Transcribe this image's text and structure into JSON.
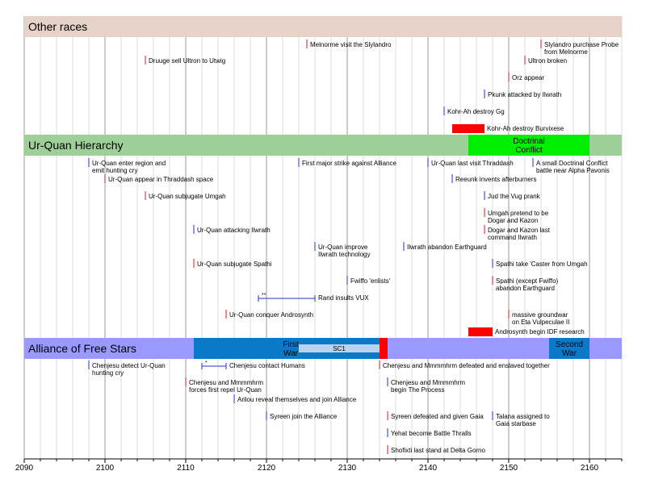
{
  "chart_data": {
    "type": "timeline",
    "x_range": [
      2090,
      2164
    ],
    "x_ticks": [
      2090,
      2100,
      2110,
      2120,
      2130,
      2140,
      2150,
      2160
    ],
    "minor_grid_step": 2,
    "grid": true,
    "colors": {
      "grid_major": "#9a9a9a",
      "grid_minor": "#dcdcdc",
      "red": "#e0141c",
      "blue": "#2233cc",
      "other_header": "#e6d2c8",
      "urquan_header": "#9ecf98",
      "alliance_header": "#9999ff",
      "doctrinal": "#00ee00",
      "war": "#0a7ac8",
      "sc1": "#b4d4f0",
      "red_bar": "#ff0000"
    },
    "sections": [
      {
        "name": "Other races",
        "header_color": "other_header",
        "spans": [],
        "events": [
          {
            "year": 2125,
            "color": "red",
            "text": [
              "Melnorme visit the Slylandro"
            ]
          },
          {
            "year": 2154,
            "color": "red",
            "text": [
              "Slylandro purchase Probe",
              "from Melnorme"
            ]
          },
          {
            "year": 2105,
            "color": "red",
            "text": [
              "Druuge sell Ultron to Utwig"
            ]
          },
          {
            "year": 2152,
            "color": "red",
            "text": [
              "Ultron broken"
            ]
          },
          {
            "year": 2150,
            "color": "red",
            "text": [
              "Orz appear"
            ]
          },
          {
            "year": 2147,
            "color": "blue",
            "text": [
              "Pkunk attacked by Ilwrath"
            ]
          },
          {
            "year": 2142,
            "color": "blue",
            "text": [
              "Kohr-Ah destroy Gg"
            ]
          },
          {
            "bar": [
              2143,
              2147
            ],
            "text": [
              "Kohr-Ah destroy Burvixese"
            ]
          }
        ]
      },
      {
        "name": "Ur-Quan Hierarchy",
        "header_color": "urquan_header",
        "spans": [
          {
            "range": [
              2145,
              2160
            ],
            "color": "doctrinal",
            "label": [
              "Doctrinal",
              "Conflict"
            ]
          }
        ],
        "events": [
          {
            "year": 2098,
            "color": "blue",
            "text": [
              "Ur-Quan enter region and",
              "emit hunting cry"
            ]
          },
          {
            "year": 2124,
            "color": "blue",
            "text": [
              "First major strike against Alliance"
            ]
          },
          {
            "year": 2140,
            "color": "blue",
            "text": [
              "Ur-Quan last visit Thraddash"
            ]
          },
          {
            "year": 2153,
            "color": "blue",
            "text": [
              "A small Doctrinal Conflict",
              "battle near Alpha Pavonis"
            ]
          },
          {
            "year": 2100,
            "color": "red",
            "text": [
              "Ur-Quan appear in Thraddash space"
            ]
          },
          {
            "year": 2143,
            "color": "blue",
            "text": [
              "Reeunk invents afterburners"
            ]
          },
          {
            "year": 2105,
            "color": "red",
            "text": [
              "Ur-Quan subjugate Umgah"
            ]
          },
          {
            "year": 2147,
            "color": "blue",
            "text": [
              "Jud the Vug prank"
            ]
          },
          {
            "year": 2147,
            "color": "red",
            "text": [
              "Umgah pretend to be",
              "Dogar and Kazon"
            ]
          },
          {
            "year": 2111,
            "color": "blue",
            "text": [
              "Ur-Quan attacking Ilwrath"
            ]
          },
          {
            "year": 2147,
            "color": "red",
            "text": [
              "Dogar and Kazon last",
              "command Ilwrath"
            ]
          },
          {
            "year": 2126,
            "color": "blue",
            "text": [
              "Ur-Quan improve",
              "Ilwrath technology"
            ]
          },
          {
            "year": 2137,
            "color": "blue",
            "text": [
              "Ilwrath abandon Earthguard"
            ]
          },
          {
            "year": 2111,
            "color": "red",
            "text": [
              "Ur-Quan subjugate Spathi"
            ]
          },
          {
            "year": 2148,
            "color": "blue",
            "text": [
              "Spathi take 'Caster from Umgah"
            ]
          },
          {
            "year": 2130,
            "color": "blue",
            "text": [
              "Fwiffo 'enlists'"
            ]
          },
          {
            "year": 2148,
            "color": "red",
            "text": [
              "Spathi (except Fwiffo)",
              "abandon Earthguard"
            ]
          },
          {
            "range": [
              2119,
              2126
            ],
            "color": "blue",
            "mark": "**",
            "text": [
              "Rand insults VUX"
            ]
          },
          {
            "year": 2115,
            "color": "red",
            "text": [
              "Ur-Quan conquer Androsynth"
            ]
          },
          {
            "year": 2150,
            "color": "red",
            "text": [
              "massive groundwar",
              "on Eta Vulpeculae II"
            ]
          },
          {
            "bar": [
              2145,
              2148
            ],
            "text": [
              "Androsynth begin IDF research"
            ]
          }
        ]
      },
      {
        "name": "Alliance of Free Stars",
        "header_color": "alliance_header",
        "spans": [
          {
            "range": [
              2111,
              2135
            ],
            "color": "war",
            "label": [
              "First",
              "War"
            ]
          },
          {
            "range": [
              2155,
              2160
            ],
            "color": "war",
            "label": [
              "Second",
              "War"
            ]
          },
          {
            "range": [
              2124,
              2134
            ],
            "color": "sc1",
            "label": [
              "SC1"
            ]
          },
          {
            "range": [
              2134,
              2135
            ],
            "color": "red_bar",
            "label": []
          }
        ],
        "events": [
          {
            "year": 2098,
            "color": "blue",
            "text": [
              "Chenjesu detect Ur-Quan",
              "hunting cry"
            ]
          },
          {
            "range": [
              2112,
              2115
            ],
            "color": "blue",
            "mark": "*",
            "text": [
              "Chenjesu contact Humans"
            ]
          },
          {
            "year": 2134,
            "color": "red",
            "text": [
              "Chenjesu and Mmmmhrm defeated and enslaved together"
            ]
          },
          {
            "year": 2110,
            "color": "red",
            "text": [
              "Chenjesu and Mmmmhrm",
              "forces first repel Ur-Quan"
            ]
          },
          {
            "year": 2135,
            "color": "blue",
            "text": [
              "Chenjesu and Mmmmhrm",
              "begin The Process"
            ]
          },
          {
            "year": 2116,
            "color": "blue",
            "text": [
              "Arilou reveal themselves and join Alliance"
            ]
          },
          {
            "year": 2120,
            "color": "blue",
            "text": [
              "Syreen join the Alliance"
            ]
          },
          {
            "year": 2135,
            "color": "red",
            "text": [
              "Syreen defeated and given Gaia"
            ]
          },
          {
            "year": 2148,
            "color": "blue",
            "text": [
              "Talana assigned to",
              "Gaia starbase"
            ]
          },
          {
            "year": 2135,
            "color": "blue",
            "text": [
              "Yehat become Battle Thralls"
            ]
          },
          {
            "year": 2135,
            "color": "red",
            "text": [
              "Shofixti last stand at Delta Gorno"
            ]
          }
        ]
      }
    ]
  }
}
